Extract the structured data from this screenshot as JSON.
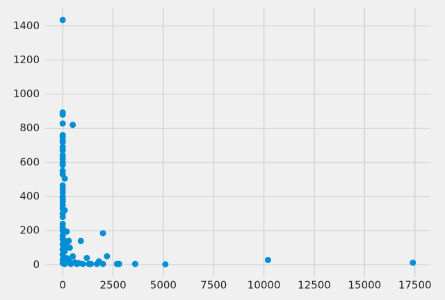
{
  "chart_data": {
    "type": "scatter",
    "color": "#008fd5",
    "grid": true,
    "x": [
      0,
      0,
      0,
      0,
      0,
      0,
      0,
      0,
      0,
      0,
      0,
      0,
      0,
      0,
      0,
      0,
      100,
      0,
      0,
      0,
      0,
      0,
      0,
      0,
      0,
      100,
      0,
      0,
      0,
      0,
      0,
      200,
      0,
      0,
      100,
      300,
      0,
      200,
      350,
      0,
      100,
      0,
      500,
      200,
      0,
      300,
      600,
      0,
      100,
      400,
      800,
      500,
      900,
      2000,
      1200,
      2200,
      1400,
      1800,
      1700,
      2000,
      2700,
      2800,
      3600,
      5100,
      10200,
      17400,
      1000,
      1300,
      700
    ],
    "y": [
      1435,
      893,
      880,
      828,
      760,
      750,
      730,
      720,
      690,
      670,
      640,
      620,
      600,
      585,
      550,
      530,
      505,
      465,
      445,
      425,
      400,
      385,
      370,
      350,
      330,
      320,
      300,
      280,
      240,
      220,
      200,
      195,
      170,
      150,
      140,
      140,
      120,
      110,
      100,
      90,
      80,
      60,
      50,
      40,
      30,
      25,
      15,
      10,
      5,
      5,
      10,
      820,
      140,
      185,
      40,
      50,
      5,
      20,
      5,
      5,
      5,
      5,
      5,
      3,
      28,
      12,
      5,
      5,
      5
    ],
    "xlim": [
      -870,
      18270
    ],
    "ylim": [
      -72,
      1507
    ],
    "xticks": [
      0,
      2500,
      5000,
      7500,
      10000,
      12500,
      15000,
      17500
    ],
    "yticks": [
      0,
      200,
      400,
      600,
      800,
      1000,
      1200,
      1400
    ]
  }
}
